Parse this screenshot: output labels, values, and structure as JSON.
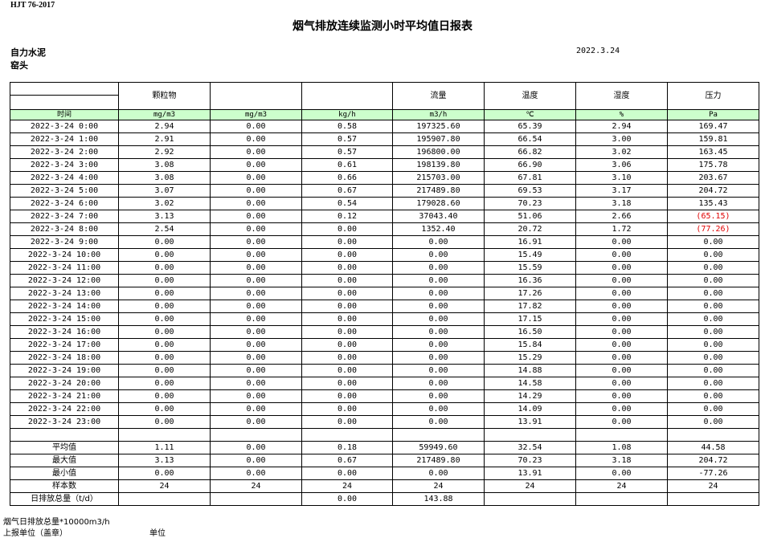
{
  "standard": "HJT  76-2017",
  "title": "烟气排放连续监测小时平均值日报表",
  "company": "自力水泥",
  "kiln": "窑头",
  "date": "2022.3.24",
  "headers": [
    "",
    "颗粒物",
    "",
    "",
    "流量",
    "温度",
    "湿度",
    "压力"
  ],
  "units": [
    "时间",
    "mg/m3",
    "mg/m3",
    "kg/h",
    "m3/h",
    "℃",
    "%",
    "Pa"
  ],
  "negative_color": "#e00000",
  "rows": [
    [
      "2022-3-24 0:00",
      "2.94",
      "0.00",
      "0.58",
      "197325.60",
      "65.39",
      "2.94",
      "169.47"
    ],
    [
      "2022-3-24 1:00",
      "2.91",
      "0.00",
      "0.57",
      "195907.80",
      "66.54",
      "3.00",
      "159.81"
    ],
    [
      "2022-3-24 2:00",
      "2.92",
      "0.00",
      "0.57",
      "196800.00",
      "66.82",
      "3.02",
      "163.45"
    ],
    [
      "2022-3-24 3:00",
      "3.08",
      "0.00",
      "0.61",
      "198139.80",
      "66.90",
      "3.06",
      "175.78"
    ],
    [
      "2022-3-24 4:00",
      "3.08",
      "0.00",
      "0.66",
      "215703.00",
      "67.81",
      "3.10",
      "203.67"
    ],
    [
      "2022-3-24 5:00",
      "3.07",
      "0.00",
      "0.67",
      "217489.80",
      "69.53",
      "3.17",
      "204.72"
    ],
    [
      "2022-3-24 6:00",
      "3.02",
      "0.00",
      "0.54",
      "179028.60",
      "70.23",
      "3.18",
      "135.43"
    ],
    [
      "2022-3-24 7:00",
      "3.13",
      "0.00",
      "0.12",
      "37043.40",
      "51.06",
      "2.66",
      "(65.15)"
    ],
    [
      "2022-3-24 8:00",
      "2.54",
      "0.00",
      "0.00",
      "1352.40",
      "20.72",
      "1.72",
      "(77.26)"
    ],
    [
      "2022-3-24 9:00",
      "0.00",
      "0.00",
      "0.00",
      "0.00",
      "16.91",
      "0.00",
      "0.00"
    ],
    [
      "2022-3-24 10:00",
      "0.00",
      "0.00",
      "0.00",
      "0.00",
      "15.49",
      "0.00",
      "0.00"
    ],
    [
      "2022-3-24 11:00",
      "0.00",
      "0.00",
      "0.00",
      "0.00",
      "15.59",
      "0.00",
      "0.00"
    ],
    [
      "2022-3-24 12:00",
      "0.00",
      "0.00",
      "0.00",
      "0.00",
      "16.36",
      "0.00",
      "0.00"
    ],
    [
      "2022-3-24 13:00",
      "0.00",
      "0.00",
      "0.00",
      "0.00",
      "17.26",
      "0.00",
      "0.00"
    ],
    [
      "2022-3-24 14:00",
      "0.00",
      "0.00",
      "0.00",
      "0.00",
      "17.82",
      "0.00",
      "0.00"
    ],
    [
      "2022-3-24 15:00",
      "0.00",
      "0.00",
      "0.00",
      "0.00",
      "17.15",
      "0.00",
      "0.00"
    ],
    [
      "2022-3-24 16:00",
      "0.00",
      "0.00",
      "0.00",
      "0.00",
      "16.50",
      "0.00",
      "0.00"
    ],
    [
      "2022-3-24 17:00",
      "0.00",
      "0.00",
      "0.00",
      "0.00",
      "15.84",
      "0.00",
      "0.00"
    ],
    [
      "2022-3-24 18:00",
      "0.00",
      "0.00",
      "0.00",
      "0.00",
      "15.29",
      "0.00",
      "0.00"
    ],
    [
      "2022-3-24 19:00",
      "0.00",
      "0.00",
      "0.00",
      "0.00",
      "14.88",
      "0.00",
      "0.00"
    ],
    [
      "2022-3-24 20:00",
      "0.00",
      "0.00",
      "0.00",
      "0.00",
      "14.58",
      "0.00",
      "0.00"
    ],
    [
      "2022-3-24 21:00",
      "0.00",
      "0.00",
      "0.00",
      "0.00",
      "14.29",
      "0.00",
      "0.00"
    ],
    [
      "2022-3-24 22:00",
      "0.00",
      "0.00",
      "0.00",
      "0.00",
      "14.09",
      "0.00",
      "0.00"
    ],
    [
      "2022-3-24 23:00",
      "0.00",
      "0.00",
      "0.00",
      "0.00",
      "13.91",
      "0.00",
      "0.00"
    ]
  ],
  "stats": [
    [
      "平均值",
      "1.11",
      "0.00",
      "0.18",
      "59949.60",
      "32.54",
      "1.08",
      "44.58"
    ],
    [
      "最大值",
      "3.13",
      "0.00",
      "0.67",
      "217489.80",
      "70.23",
      "3.18",
      "204.72"
    ],
    [
      "最小值",
      "0.00",
      "0.00",
      "0.00",
      "0.00",
      "13.91",
      "0.00",
      "-77.26"
    ],
    [
      "样本数",
      "24",
      "24",
      "24",
      "24",
      "24",
      "24",
      "24"
    ],
    [
      "日排放总量（t/d）",
      "",
      "",
      "0.00",
      "143.88",
      "",
      "",
      ""
    ]
  ],
  "footer": {
    "flue_total": "烟气日排放总量*10000m3/h",
    "reporter": "上报单位（盖章）",
    "unit": "单位"
  }
}
